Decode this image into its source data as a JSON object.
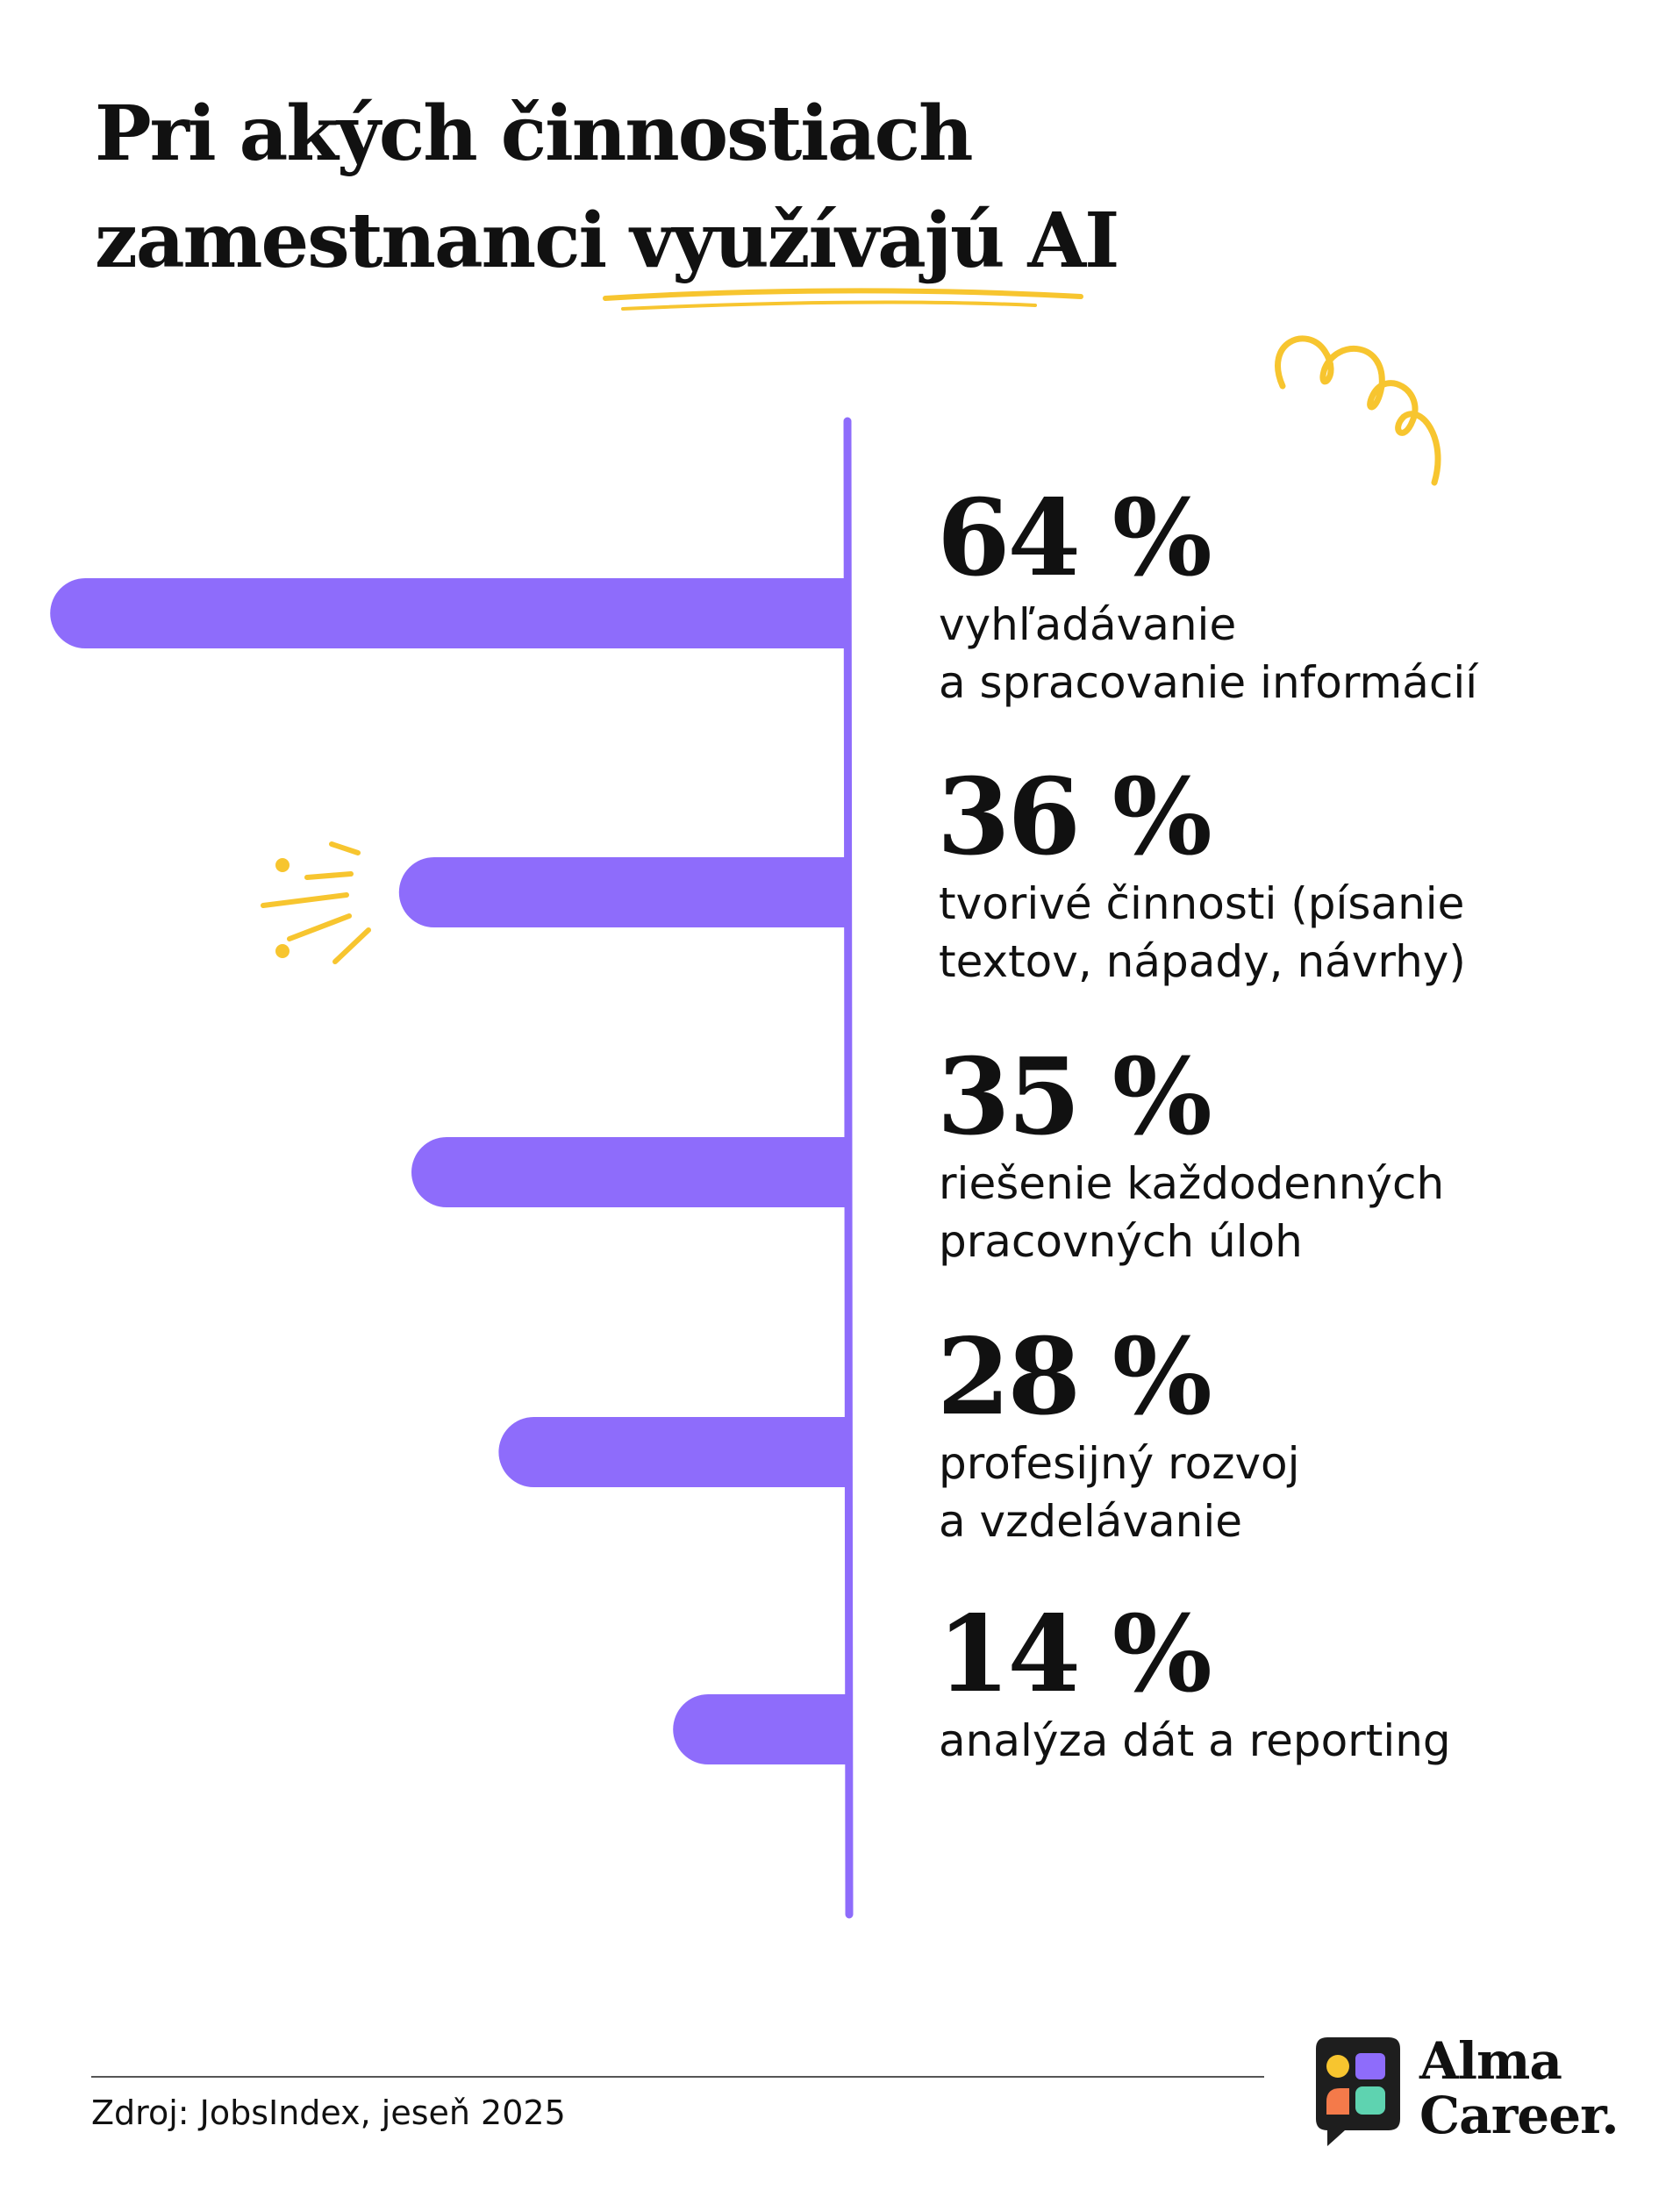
{
  "chart_data": {
    "type": "bar",
    "orientation": "horizontal",
    "title": "Pri akých činnostiach\nzamestnanci využívajú AI",
    "categories": [
      "vyhľadávanie\na spracovanie informácií",
      "tvorivé činnosti (písanie\ntextov, nápady, návrhy)",
      "riešenie každodenných\npracovných úloh",
      "profesijný rozvoj\na vzdelávanie",
      "analýza dát a reporting"
    ],
    "values": [
      64,
      36,
      35,
      28,
      14
    ],
    "value_labels": [
      "64 %",
      "36 %",
      "35 %",
      "28 %",
      "14 %"
    ],
    "color": "#8e6cfb",
    "source": "Zdroj: JobsIndex, jeseň 2025",
    "logo": "Alma\nCareer."
  }
}
